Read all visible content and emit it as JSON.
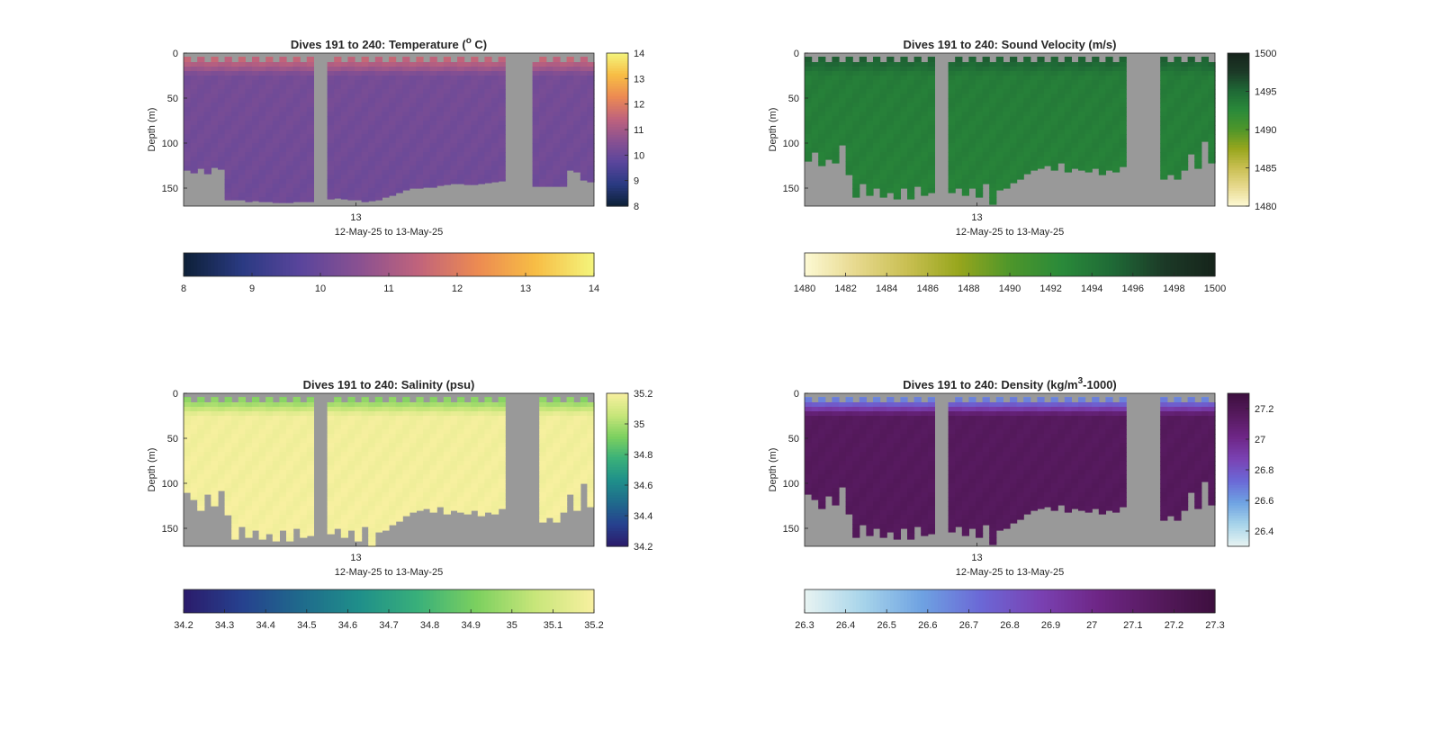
{
  "chart_data": [
    {
      "type": "heatmap",
      "variable": "temperature",
      "title": "Dives 191 to 240: Temperature (",
      "title_sup": "o",
      "title_end": " C)",
      "ylabel": "Depth (m)",
      "xlabel": "12-May-25 to 13-May-25",
      "xticks": [
        "13"
      ],
      "yticks": [
        0,
        50,
        100,
        150
      ],
      "ylim": [
        0,
        170
      ],
      "colorbar_range": [
        8,
        14
      ],
      "colorbar_ticks": [
        8,
        9,
        10,
        11,
        12,
        13,
        14
      ],
      "colorbar_horizontal_ticks": [
        8,
        9,
        10,
        11,
        12,
        13,
        14
      ],
      "colorscale": [
        "#0d2037",
        "#2a3a82",
        "#5a459c",
        "#8a5191",
        "#c0637c",
        "#ec8a52",
        "#f7bd45",
        "#f4f57c"
      ],
      "surface_value": 11.6,
      "interior_value": 10.2,
      "deep_value": 10.1,
      "max_depths": [
        130,
        133,
        128,
        134,
        127,
        129,
        163,
        163,
        163,
        165,
        164,
        165,
        165,
        166,
        166,
        166,
        165,
        165,
        165,
        null,
        null,
        162,
        161,
        162,
        163,
        163,
        165,
        164,
        163,
        160,
        158,
        155,
        152,
        150,
        150,
        149,
        149,
        147,
        146,
        145,
        145,
        146,
        146,
        145,
        144,
        143,
        142,
        null,
        null,
        null,
        null,
        148,
        148,
        148,
        148,
        148,
        130,
        132,
        141,
        143
      ]
    },
    {
      "type": "heatmap",
      "variable": "sound_velocity",
      "title": "Dives 191 to 240: Sound Velocity (m/s)",
      "ylabel": "Depth (m)",
      "xlabel": "12-May-25 to 13-May-25",
      "xticks": [
        "13"
      ],
      "yticks": [
        0,
        50,
        100,
        150
      ],
      "ylim": [
        0,
        170
      ],
      "colorbar_range": [
        1480,
        1500
      ],
      "colorbar_ticks": [
        1480,
        1485,
        1490,
        1495,
        1500
      ],
      "colorbar_horizontal_ticks": [
        1480,
        1482,
        1484,
        1486,
        1488,
        1490,
        1492,
        1494,
        1496,
        1498,
        1500
      ],
      "colorscale": [
        "#fdf9d4",
        "#e7d98e",
        "#c9bf52",
        "#97a61d",
        "#4e962a",
        "#2a8a3a",
        "#1f6a36",
        "#1c3a27",
        "#16241b"
      ],
      "surface_value": 1495.6,
      "interior_value": 1493.6,
      "deep_value": 1493.2,
      "max_depths": [
        120,
        110,
        125,
        118,
        122,
        102,
        135,
        160,
        145,
        158,
        150,
        160,
        155,
        162,
        150,
        162,
        148,
        158,
        155,
        null,
        null,
        155,
        150,
        158,
        150,
        160,
        145,
        168,
        152,
        150,
        144,
        140,
        134,
        130,
        128,
        125,
        130,
        122,
        132,
        128,
        130,
        132,
        128,
        135,
        130,
        132,
        126,
        null,
        null,
        null,
        null,
        null,
        140,
        135,
        140,
        130,
        112,
        128,
        98,
        122
      ]
    },
    {
      "type": "heatmap",
      "variable": "salinity",
      "title": "Dives 191 to 240: Salinity (psu)",
      "ylabel": "Depth (m)",
      "xlabel": "12-May-25 to 13-May-25",
      "xticks": [
        "13"
      ],
      "yticks": [
        0,
        50,
        100,
        150
      ],
      "ylim": [
        0,
        170
      ],
      "colorbar_range": [
        34.2,
        35.2
      ],
      "colorbar_ticks": [
        34.2,
        34.4,
        34.6,
        34.8,
        35,
        35.2
      ],
      "colorbar_horizontal_ticks": [
        34.2,
        34.3,
        34.4,
        34.5,
        34.6,
        34.7,
        34.8,
        34.9,
        35,
        35.1,
        35.2
      ],
      "colorscale": [
        "#2b1b6b",
        "#26418e",
        "#1f6a8c",
        "#1f8f8a",
        "#39b07a",
        "#7cd05f",
        "#c8e67a",
        "#f8f0a0"
      ],
      "surface_value": 34.92,
      "interior_value": 35.18,
      "deep_value": 35.19,
      "max_depths": [
        110,
        118,
        130,
        112,
        125,
        108,
        135,
        162,
        148,
        160,
        152,
        162,
        156,
        164,
        152,
        164,
        150,
        160,
        158,
        null,
        null,
        156,
        150,
        160,
        152,
        164,
        148,
        170,
        154,
        152,
        146,
        142,
        136,
        132,
        130,
        128,
        132,
        126,
        134,
        130,
        132,
        134,
        130,
        136,
        132,
        134,
        128,
        null,
        null,
        null,
        null,
        null,
        143,
        138,
        143,
        132,
        112,
        130,
        100,
        126
      ]
    },
    {
      "type": "heatmap",
      "variable": "density",
      "title": "Dives 191 to 240: Density (kg/m",
      "title_sup": "3",
      "title_end": "-1000)",
      "ylabel": "Depth (m)",
      "xlabel": "12-May-25 to 13-May-25",
      "xticks": [
        "13"
      ],
      "yticks": [
        0,
        50,
        100,
        150
      ],
      "ylim": [
        0,
        170
      ],
      "colorbar_range": [
        26.3,
        27.3
      ],
      "colorbar_ticks": [
        26.4,
        26.6,
        26.8,
        27,
        27.2
      ],
      "colorbar_horizontal_ticks": [
        26.3,
        26.4,
        26.5,
        26.6,
        26.7,
        26.8,
        26.9,
        27,
        27.1,
        27.2,
        27.3
      ],
      "colorscale": [
        "#e8f4f2",
        "#a7d4ea",
        "#6ea2e2",
        "#6b68d6",
        "#7a42b3",
        "#6e2686",
        "#561a5e",
        "#3d0f3e"
      ],
      "surface_value": 26.62,
      "interior_value": 27.16,
      "deep_value": 27.17,
      "max_depths": [
        112,
        118,
        128,
        114,
        124,
        104,
        134,
        160,
        146,
        158,
        150,
        160,
        154,
        162,
        150,
        162,
        148,
        158,
        156,
        null,
        null,
        154,
        148,
        158,
        150,
        160,
        146,
        168,
        152,
        150,
        144,
        140,
        134,
        130,
        128,
        126,
        130,
        124,
        132,
        128,
        130,
        132,
        128,
        134,
        130,
        132,
        126,
        null,
        null,
        null,
        null,
        null,
        141,
        136,
        141,
        130,
        110,
        128,
        98,
        124
      ]
    }
  ]
}
